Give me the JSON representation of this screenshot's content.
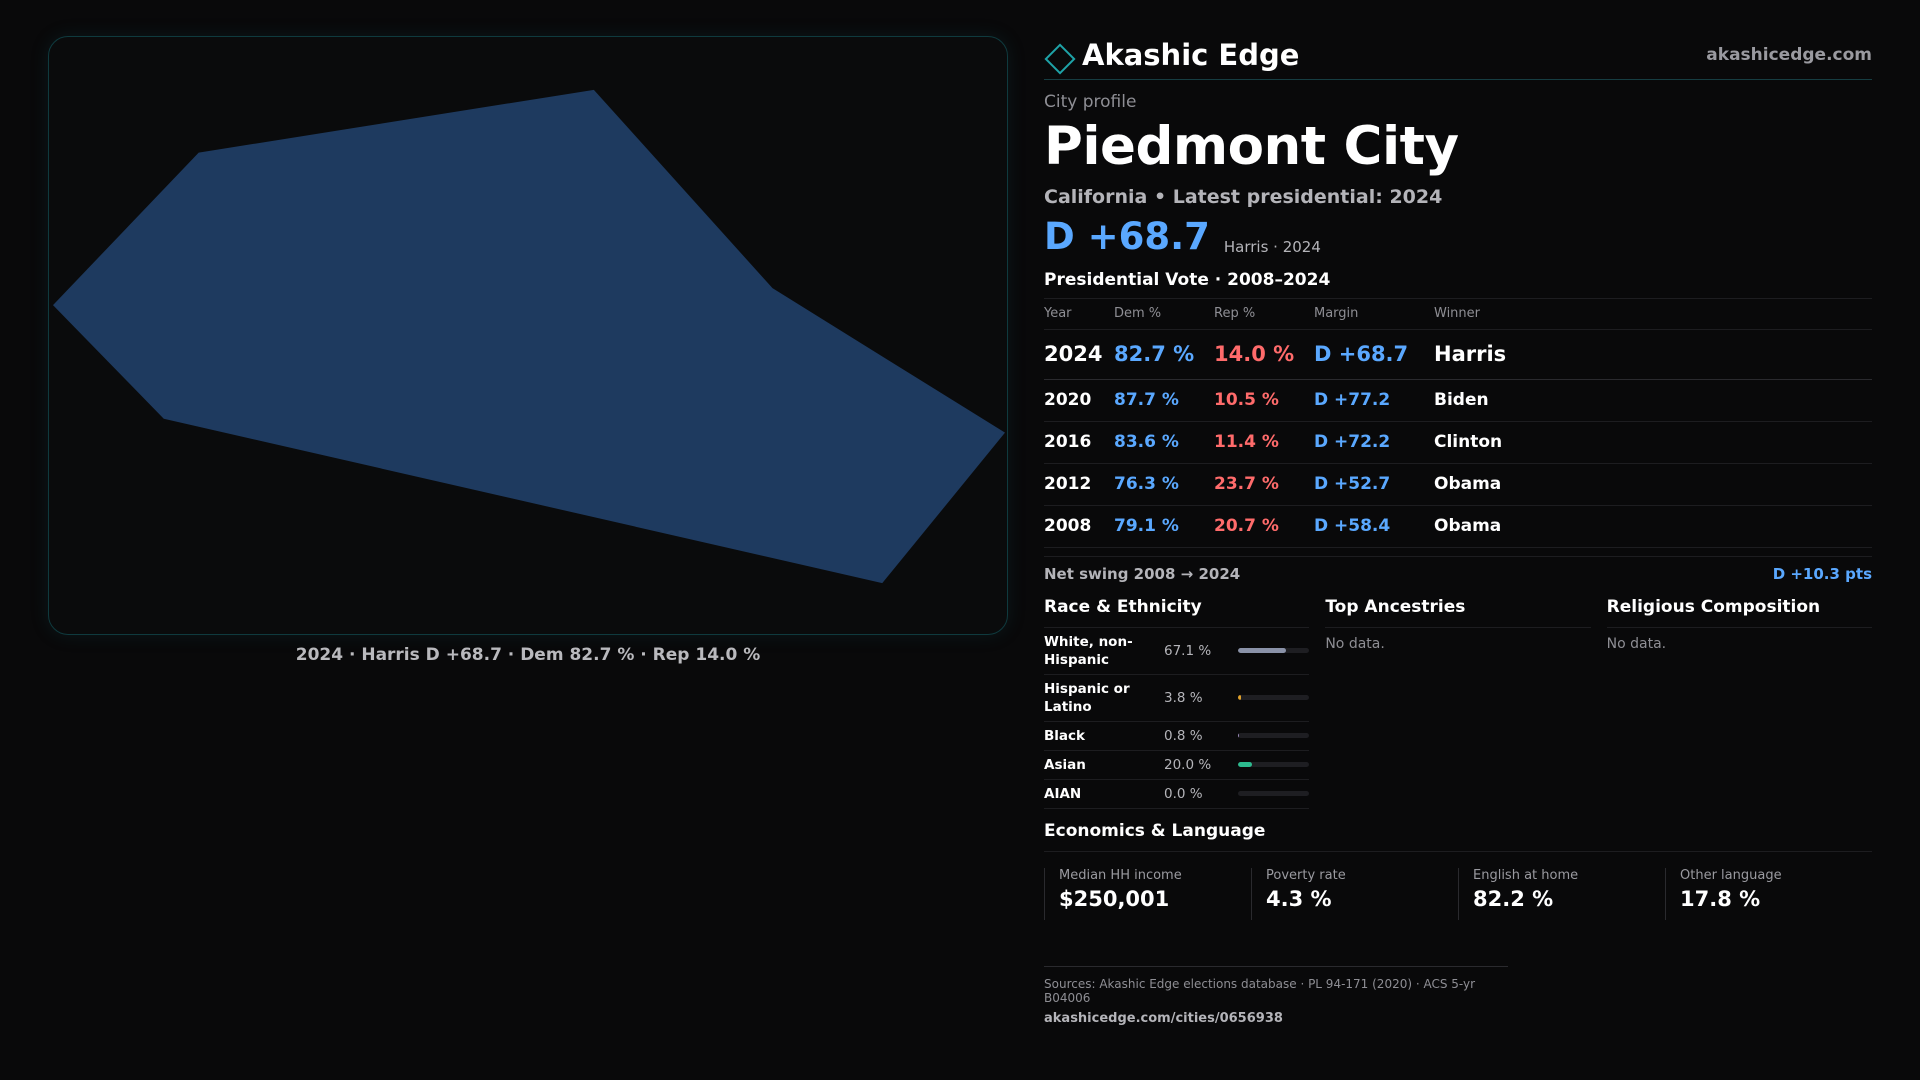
{
  "brand": {
    "name": "Akashic Edge",
    "site": "akashicedge.com",
    "icon": "diamond-icon",
    "accent": "#1ea3a8"
  },
  "profile": {
    "eyebrow": "City profile",
    "title": "Piedmont City",
    "subtitle": "California • Latest presidential: 2024",
    "headline_margin": "D +68.7",
    "headline_note": "Harris · 2024"
  },
  "map": {
    "caption": "2024 · Harris D +68.7 · Dem 82.7 % · Rep 14.0 %",
    "fill": "#1e3a5f"
  },
  "vote": {
    "title": "Presidential Vote · 2008–2024",
    "headers": {
      "year": "Year",
      "dem": "Dem %",
      "rep": "Rep %",
      "margin": "Margin",
      "winner": "Winner"
    },
    "rows": [
      {
        "year": "2024",
        "dem": "82.7 %",
        "rep": "14.0 %",
        "margin": "D +68.7",
        "winner": "Harris"
      },
      {
        "year": "2020",
        "dem": "87.7 %",
        "rep": "10.5 %",
        "margin": "D +77.2",
        "winner": "Biden"
      },
      {
        "year": "2016",
        "dem": "83.6 %",
        "rep": "11.4 %",
        "margin": "D +72.2",
        "winner": "Clinton"
      },
      {
        "year": "2012",
        "dem": "76.3 %",
        "rep": "23.7 %",
        "margin": "D +52.7",
        "winner": "Obama"
      },
      {
        "year": "2008",
        "dem": "79.1 %",
        "rep": "20.7 %",
        "margin": "D +58.4",
        "winner": "Obama"
      }
    ],
    "swing_label": "Net swing 2008 → 2024",
    "swing_value": "D +10.3 pts"
  },
  "race": {
    "title": "Race & Ethnicity",
    "rows": [
      {
        "label": "White, non-Hispanic",
        "pct": "67.1 %",
        "value": 67.1,
        "color": "#8a92a8"
      },
      {
        "label": "Hispanic or Latino",
        "pct": "3.8 %",
        "value": 3.8,
        "color": "#e0a12a"
      },
      {
        "label": "Black",
        "pct": "0.8 %",
        "value": 0.8,
        "color": "#9a8ab8"
      },
      {
        "label": "Asian",
        "pct": "20.0 %",
        "value": 20.0,
        "color": "#2dbb8f"
      },
      {
        "label": "AIAN",
        "pct": "0.0 %",
        "value": 0.0,
        "color": "#c46f6f"
      }
    ]
  },
  "ancestries": {
    "title": "Top Ancestries",
    "empty": "No data."
  },
  "religion": {
    "title": "Religious Composition",
    "empty": "No data."
  },
  "economics": {
    "title": "Economics & Language",
    "cells": [
      {
        "label": "Median HH income",
        "value": "$250,001"
      },
      {
        "label": "Poverty rate",
        "value": "4.3 %"
      },
      {
        "label": "English at home",
        "value": "82.2 %"
      },
      {
        "label": "Other language",
        "value": "17.8 %"
      }
    ]
  },
  "footer": {
    "sources": "Sources: Akashic Edge elections database · PL 94-171 (2020) · ACS 5-yr B04006",
    "permalink": "akashicedge.com/cities/0656938"
  }
}
